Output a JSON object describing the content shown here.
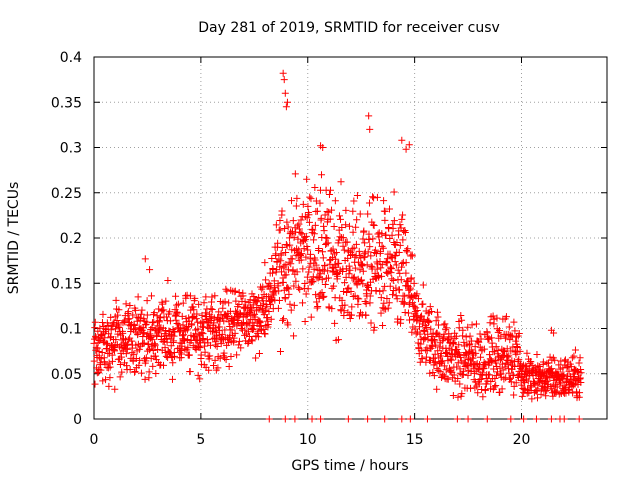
{
  "chart_data": {
    "type": "scatter",
    "title": "Day 281 of 2019, SRMTID for receiver cusv",
    "xlabel": "GPS time / hours",
    "ylabel": "SRMTID / TECUs",
    "xlim": [
      0,
      24
    ],
    "ylim": [
      0,
      0.4
    ],
    "xticks": [
      0,
      5,
      10,
      15,
      20
    ],
    "xtick_labels": [
      "0",
      "5",
      "10",
      "15",
      "20"
    ],
    "yticks": [
      0,
      0.05,
      0.1,
      0.15,
      0.2,
      0.25,
      0.3,
      0.35,
      0.4
    ],
    "ytick_labels": [
      "0",
      "0.05",
      "0.1",
      "0.15",
      "0.2",
      "0.25",
      "0.3",
      "0.35",
      "0.4"
    ],
    "grid": true,
    "marker": "+",
    "color": "#ff0000",
    "trend": {
      "x": [
        0,
        1,
        2,
        3,
        4,
        5,
        6,
        7,
        8,
        8.5,
        9,
        10,
        11,
        12,
        13,
        14,
        14.7,
        15,
        16,
        17,
        18,
        19,
        19.9,
        20,
        21,
        22,
        22.8
      ],
      "y": [
        0.075,
        0.085,
        0.09,
        0.095,
        0.095,
        0.09,
        0.1,
        0.11,
        0.12,
        0.15,
        0.18,
        0.19,
        0.18,
        0.165,
        0.17,
        0.165,
        0.15,
        0.11,
        0.08,
        0.065,
        0.065,
        0.07,
        0.075,
        0.045,
        0.045,
        0.045,
        0.045
      ]
    },
    "highlights": {
      "x": [
        8.85,
        8.9,
        8.95,
        9.0,
        9.05,
        10.6,
        10.7,
        12.85,
        12.9,
        14.4,
        14.6,
        14.75,
        2.4,
        2.6,
        21.4,
        21.5
      ],
      "y": [
        0.382,
        0.375,
        0.36,
        0.345,
        0.35,
        0.302,
        0.3,
        0.335,
        0.32,
        0.308,
        0.298,
        0.303,
        0.177,
        0.165,
        0.098,
        0.095
      ]
    },
    "zeros": {
      "x": [
        8.2,
        8.95,
        9.4,
        10.2,
        10.6,
        11.9,
        12.8,
        13.6,
        14.4,
        14.8,
        15.6,
        17.0,
        17.5,
        18.4,
        19.5,
        20.1,
        20.7,
        21.4,
        21.8,
        22.0,
        22.7
      ],
      "y": [
        0,
        0,
        0,
        0,
        0,
        0,
        0,
        0,
        0,
        0,
        0,
        0,
        0,
        0,
        0,
        0,
        0,
        0,
        0,
        0,
        0
      ]
    }
  }
}
